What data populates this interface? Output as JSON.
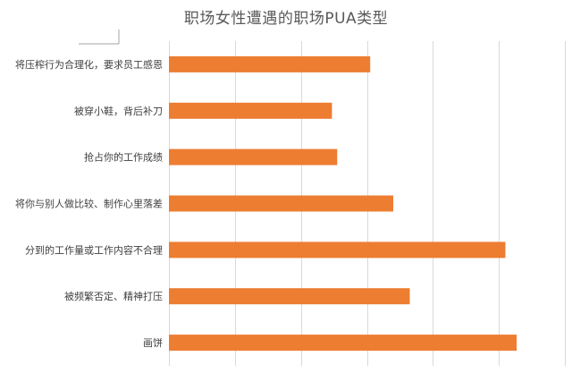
{
  "chart_data": {
    "type": "bar",
    "orientation": "horizontal",
    "title": "职场女性遭遇的职场PUA类型",
    "categories": [
      "将压榨行为合理化，要求员工感恩",
      "被穿小鞋，背后补刀",
      "抢占你的工作成绩",
      "将你与别人做比较、制作心里落差",
      "分到的工作量或工作内容不合理",
      "被频繁否定、精神打压",
      "画饼"
    ],
    "values": [
      0.305,
      0.247,
      0.255,
      0.34,
      0.51,
      0.365,
      0.527
    ],
    "xlim": [
      0,
      0.6
    ],
    "grid": true,
    "legend": "none",
    "colors": {
      "bar": "#ED7D31",
      "grid": "#D9D9D9",
      "title": "#595959",
      "labels": "#404040"
    }
  }
}
